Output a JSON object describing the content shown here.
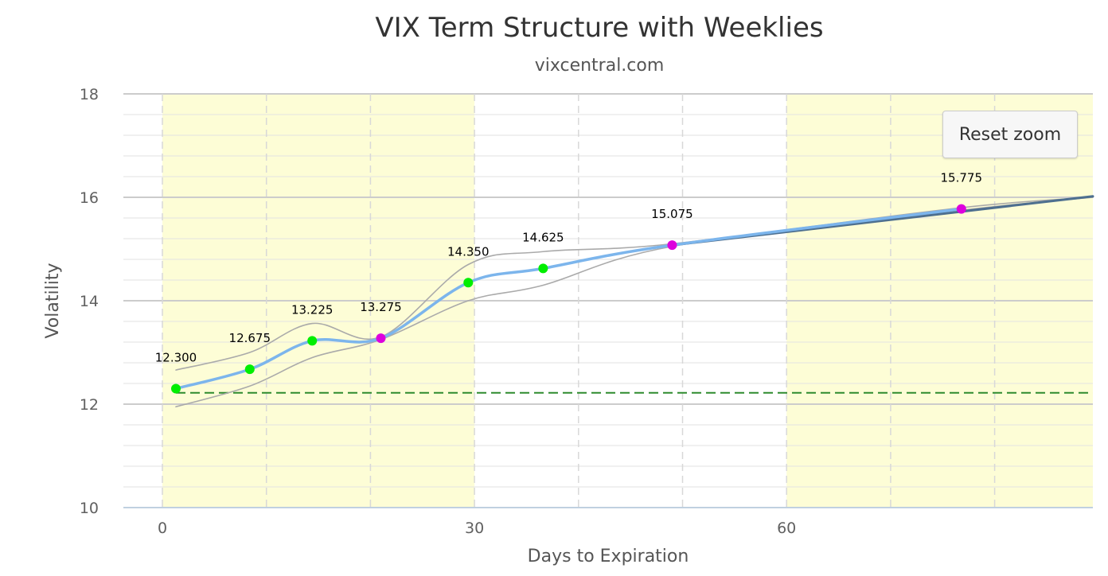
{
  "chart_data": {
    "type": "line",
    "title": "VIX Term Structure with Weeklies",
    "subtitle": "vixcentral.com",
    "xlabel": "Days to Expiration",
    "ylabel": "Volatility",
    "xlim": [
      -4,
      90
    ],
    "ylim": [
      10,
      18
    ],
    "x_ticks": [
      0,
      30,
      60
    ],
    "y_ticks": [
      10,
      12,
      14,
      16,
      18
    ],
    "grid": true,
    "shaded_x_ranges": [
      [
        0,
        30
      ],
      [
        60,
        90
      ]
    ],
    "reference_line": {
      "y": 12.22,
      "style": "dashed",
      "color": "#2e8b2e"
    },
    "series": [
      {
        "color": "#7cb5ec",
        "x": [
          1.3,
          8.4,
          14.4,
          21.0,
          29.4,
          36.6,
          49.0,
          76.8
        ],
        "values": [
          12.3,
          12.675,
          13.225,
          13.275,
          14.35,
          14.625,
          15.075,
          15.775
        ],
        "point_colors": [
          "#00ee00",
          "#00ee00",
          "#00ee00",
          "#dd00dd",
          "#00ee00",
          "#00ee00",
          "#dd00dd",
          "#dd00dd"
        ],
        "labels": [
          "12.300",
          "12.675",
          "13.225",
          "13.275",
          "14.350",
          "14.625",
          "15.075",
          "15.775"
        ]
      },
      {
        "color": "#aaaaaa",
        "x": [
          1.3,
          8.4,
          14.4,
          21.0,
          29.4,
          36.6,
          49.0,
          76.8,
          90
        ],
        "values": [
          12.66,
          13.0,
          13.56,
          13.3,
          14.7,
          14.95,
          15.1,
          15.8,
          16.0
        ]
      },
      {
        "color": "#aaaaaa",
        "x": [
          1.3,
          8.4,
          14.4,
          21.0,
          29.4,
          36.6,
          49.0,
          76.8,
          90
        ],
        "values": [
          11.95,
          12.35,
          12.9,
          13.25,
          14.0,
          14.3,
          15.05,
          15.75,
          16.0
        ]
      },
      {
        "color": "#4d6f8f",
        "x": [
          49.0,
          90
        ],
        "values": [
          15.075,
          16.02
        ]
      }
    ]
  },
  "ui": {
    "reset_zoom_label": "Reset zoom"
  }
}
